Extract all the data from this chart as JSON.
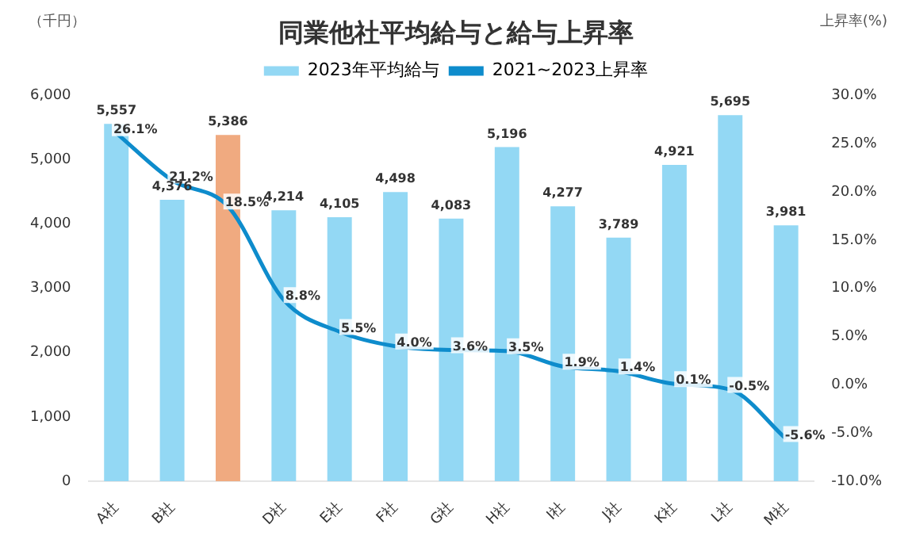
{
  "chart_data": {
    "type": "bar",
    "title": "同業他社平均給与と給与上昇率",
    "ylabel": "（千円）",
    "y2label": "上昇率(%)",
    "categories": [
      "A社",
      "B社",
      null,
      "D社",
      "E社",
      "F社",
      "G社",
      "H社",
      "I社",
      "J社",
      "K社",
      "L社",
      "M社"
    ],
    "series": [
      {
        "name": "2023年平均給与",
        "color": "#93d8f4",
        "colors": [
          "#93d8f4",
          "#93d8f4",
          "#f0aa80",
          "#93d8f4",
          "#93d8f4",
          "#93d8f4",
          "#93d8f4",
          "#93d8f4",
          "#93d8f4",
          "#93d8f4",
          "#93d8f4",
          "#93d8f4",
          "#93d8f4"
        ],
        "values": [
          5557,
          4376,
          5386,
          4214,
          4105,
          4498,
          4083,
          5196,
          4277,
          3789,
          4921,
          5695,
          3981
        ],
        "value_labels": [
          "5,557",
          "4,376",
          "5,386",
          "4,214",
          "4,105",
          "4,498",
          "4,083",
          "5,196",
          "4,277",
          "3,789",
          "4,921",
          "5,695",
          "3,981"
        ]
      },
      {
        "name": "2021~2023上昇率",
        "type": "line",
        "axis": "y2",
        "color": "#0e8ccc",
        "marker": "none",
        "values": [
          26.1,
          21.2,
          18.5,
          8.8,
          5.5,
          4.0,
          3.6,
          3.5,
          1.9,
          1.4,
          0.1,
          -0.5,
          -5.6
        ],
        "value_labels": [
          "26.1%",
          "21.2%",
          "18.5%",
          "8.8%",
          "5.5%",
          "4.0%",
          "3.6%",
          "3.5%",
          "1.9%",
          "1.4%",
          "0.1%",
          "-0.5%",
          "-5.6%"
        ]
      }
    ],
    "ylim": [
      0,
      6000
    ],
    "yticks": [
      0,
      {
        "value": 1000,
        "label": "1,000"
      },
      {
        "value": 2000,
        "label": "2,000"
      },
      {
        "value": 3000,
        "label": "3,000"
      },
      {
        "value": 4000,
        "label": "4,000"
      },
      {
        "value": 5000,
        "label": "5,000"
      },
      {
        "value": 6000,
        "label": "6,000"
      }
    ],
    "y2lim": [
      -10,
      30
    ],
    "y2ticks": [
      {
        "value": -10,
        "label": "-10.0%"
      },
      {
        "value": -5,
        "label": "-5.0%"
      },
      {
        "value": 0,
        "label": "0.0%"
      },
      {
        "value": 5,
        "label": "5.0%"
      },
      {
        "value": 10,
        "label": "10.0%"
      },
      {
        "value": 15,
        "label": "15.0%"
      },
      {
        "value": 20,
        "label": "20.0%"
      },
      {
        "value": 25,
        "label": "25.0%"
      },
      {
        "value": 30,
        "label": "30.0%"
      }
    ],
    "grid": false,
    "legend": "top"
  }
}
